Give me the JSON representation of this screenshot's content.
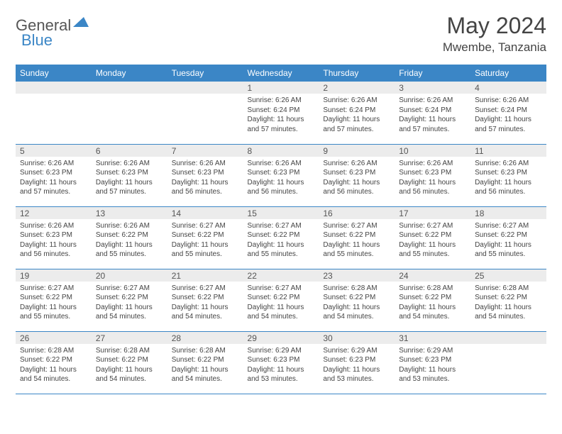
{
  "logo": {
    "part1": "General",
    "part2": "Blue"
  },
  "title": "May 2024",
  "location": "Mwembe, Tanzania",
  "colors": {
    "header_bg": "#3b86c6",
    "header_text": "#ffffff",
    "daynum_bg": "#ececec",
    "cell_border": "#3b86c6",
    "body_text": "#444444",
    "logo_gray": "#555555",
    "logo_blue": "#3b86c6"
  },
  "day_headers": [
    "Sunday",
    "Monday",
    "Tuesday",
    "Wednesday",
    "Thursday",
    "Friday",
    "Saturday"
  ],
  "weeks": [
    [
      {
        "n": "",
        "sr": "",
        "ss": "",
        "dl": ""
      },
      {
        "n": "",
        "sr": "",
        "ss": "",
        "dl": ""
      },
      {
        "n": "",
        "sr": "",
        "ss": "",
        "dl": ""
      },
      {
        "n": "1",
        "sr": "6:26 AM",
        "ss": "6:24 PM",
        "dl": "11 hours and 57 minutes."
      },
      {
        "n": "2",
        "sr": "6:26 AM",
        "ss": "6:24 PM",
        "dl": "11 hours and 57 minutes."
      },
      {
        "n": "3",
        "sr": "6:26 AM",
        "ss": "6:24 PM",
        "dl": "11 hours and 57 minutes."
      },
      {
        "n": "4",
        "sr": "6:26 AM",
        "ss": "6:24 PM",
        "dl": "11 hours and 57 minutes."
      }
    ],
    [
      {
        "n": "5",
        "sr": "6:26 AM",
        "ss": "6:23 PM",
        "dl": "11 hours and 57 minutes."
      },
      {
        "n": "6",
        "sr": "6:26 AM",
        "ss": "6:23 PM",
        "dl": "11 hours and 57 minutes."
      },
      {
        "n": "7",
        "sr": "6:26 AM",
        "ss": "6:23 PM",
        "dl": "11 hours and 56 minutes."
      },
      {
        "n": "8",
        "sr": "6:26 AM",
        "ss": "6:23 PM",
        "dl": "11 hours and 56 minutes."
      },
      {
        "n": "9",
        "sr": "6:26 AM",
        "ss": "6:23 PM",
        "dl": "11 hours and 56 minutes."
      },
      {
        "n": "10",
        "sr": "6:26 AM",
        "ss": "6:23 PM",
        "dl": "11 hours and 56 minutes."
      },
      {
        "n": "11",
        "sr": "6:26 AM",
        "ss": "6:23 PM",
        "dl": "11 hours and 56 minutes."
      }
    ],
    [
      {
        "n": "12",
        "sr": "6:26 AM",
        "ss": "6:23 PM",
        "dl": "11 hours and 56 minutes."
      },
      {
        "n": "13",
        "sr": "6:26 AM",
        "ss": "6:22 PM",
        "dl": "11 hours and 55 minutes."
      },
      {
        "n": "14",
        "sr": "6:27 AM",
        "ss": "6:22 PM",
        "dl": "11 hours and 55 minutes."
      },
      {
        "n": "15",
        "sr": "6:27 AM",
        "ss": "6:22 PM",
        "dl": "11 hours and 55 minutes."
      },
      {
        "n": "16",
        "sr": "6:27 AM",
        "ss": "6:22 PM",
        "dl": "11 hours and 55 minutes."
      },
      {
        "n": "17",
        "sr": "6:27 AM",
        "ss": "6:22 PM",
        "dl": "11 hours and 55 minutes."
      },
      {
        "n": "18",
        "sr": "6:27 AM",
        "ss": "6:22 PM",
        "dl": "11 hours and 55 minutes."
      }
    ],
    [
      {
        "n": "19",
        "sr": "6:27 AM",
        "ss": "6:22 PM",
        "dl": "11 hours and 55 minutes."
      },
      {
        "n": "20",
        "sr": "6:27 AM",
        "ss": "6:22 PM",
        "dl": "11 hours and 54 minutes."
      },
      {
        "n": "21",
        "sr": "6:27 AM",
        "ss": "6:22 PM",
        "dl": "11 hours and 54 minutes."
      },
      {
        "n": "22",
        "sr": "6:27 AM",
        "ss": "6:22 PM",
        "dl": "11 hours and 54 minutes."
      },
      {
        "n": "23",
        "sr": "6:28 AM",
        "ss": "6:22 PM",
        "dl": "11 hours and 54 minutes."
      },
      {
        "n": "24",
        "sr": "6:28 AM",
        "ss": "6:22 PM",
        "dl": "11 hours and 54 minutes."
      },
      {
        "n": "25",
        "sr": "6:28 AM",
        "ss": "6:22 PM",
        "dl": "11 hours and 54 minutes."
      }
    ],
    [
      {
        "n": "26",
        "sr": "6:28 AM",
        "ss": "6:22 PM",
        "dl": "11 hours and 54 minutes."
      },
      {
        "n": "27",
        "sr": "6:28 AM",
        "ss": "6:22 PM",
        "dl": "11 hours and 54 minutes."
      },
      {
        "n": "28",
        "sr": "6:28 AM",
        "ss": "6:22 PM",
        "dl": "11 hours and 54 minutes."
      },
      {
        "n": "29",
        "sr": "6:29 AM",
        "ss": "6:23 PM",
        "dl": "11 hours and 53 minutes."
      },
      {
        "n": "30",
        "sr": "6:29 AM",
        "ss": "6:23 PM",
        "dl": "11 hours and 53 minutes."
      },
      {
        "n": "31",
        "sr": "6:29 AM",
        "ss": "6:23 PM",
        "dl": "11 hours and 53 minutes."
      },
      {
        "n": "",
        "sr": "",
        "ss": "",
        "dl": ""
      }
    ]
  ],
  "labels": {
    "sunrise": "Sunrise: ",
    "sunset": "Sunset: ",
    "daylight": "Daylight: "
  }
}
